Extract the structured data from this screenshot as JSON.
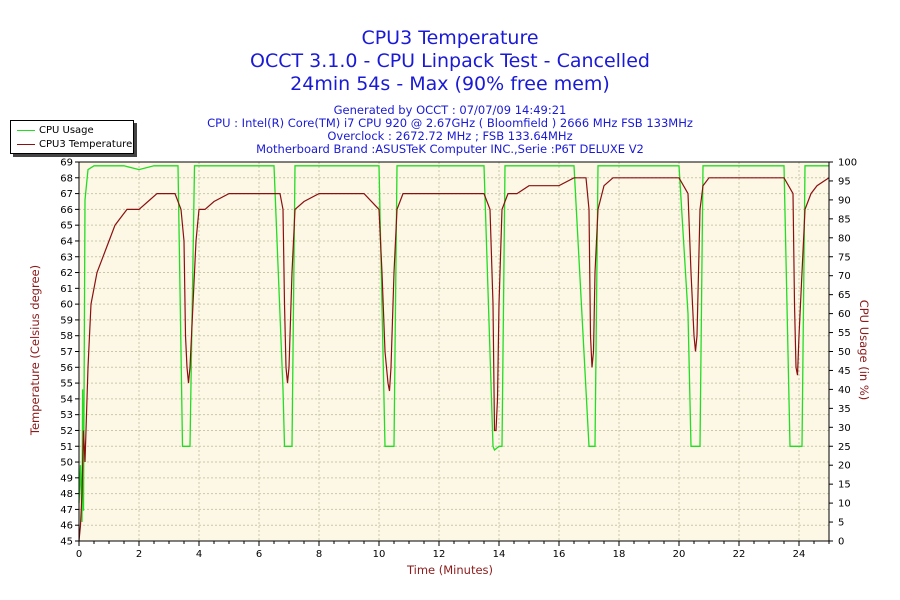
{
  "header": {
    "title1": "CPU3 Temperature",
    "title2": "OCCT 3.1.0 - CPU Linpack Test - Cancelled",
    "title3": "24min 54s - Max (90% free mem)",
    "info": [
      "Generated by OCCT : 07/07/09 14:49:21",
      "CPU : Intel(R) Core(TM) i7 CPU 920 @ 2.67GHz ( Bloomfield ) 2666 MHz FSB 133MHz",
      "Overclock : 2672.72 MHz ; FSB 133.64MHz",
      "Motherboard Brand :ASUSTeK Computer INC.,Serie :P6T DELUXE V2"
    ]
  },
  "legend": {
    "items": [
      {
        "label": "CPU Usage",
        "color": "#22dd22"
      },
      {
        "label": "CPU3 Temperature",
        "color": "#8b1010"
      }
    ]
  },
  "colors": {
    "plot_bg": "#fdf8e6",
    "grid": "#c8c8a8",
    "temp": "#8b1010",
    "usage": "#22dd22",
    "axis_label": "#8b1a1a"
  },
  "chart_data": {
    "type": "line",
    "xlabel": "Time (Minutes)",
    "ylabel": "Temperature (Celsius degree)",
    "y2label": "CPU Usage (in %)",
    "xlim": [
      0,
      25
    ],
    "ylim": [
      45,
      69
    ],
    "y2lim": [
      0,
      100
    ],
    "x_ticks": [
      0,
      2,
      4,
      6,
      8,
      10,
      12,
      14,
      16,
      18,
      20,
      22,
      24
    ],
    "y_ticks": [
      45,
      46,
      47,
      48,
      49,
      50,
      51,
      52,
      53,
      54,
      55,
      56,
      57,
      58,
      59,
      60,
      61,
      62,
      63,
      64,
      65,
      66,
      67,
      68,
      69
    ],
    "y2_ticks": [
      0,
      5,
      10,
      15,
      20,
      25,
      30,
      35,
      40,
      45,
      50,
      55,
      60,
      65,
      70,
      75,
      80,
      85,
      90,
      95,
      100
    ],
    "grid": true,
    "legend_position": "top-left",
    "series": [
      {
        "name": "CPU3 Temperature",
        "axis": "left",
        "x": [
          0.0,
          0.05,
          0.1,
          0.15,
          0.2,
          0.3,
          0.4,
          0.6,
          0.8,
          1.0,
          1.2,
          1.4,
          1.6,
          1.8,
          2.0,
          2.3,
          2.6,
          2.9,
          3.2,
          3.4,
          3.5,
          3.55,
          3.6,
          3.65,
          3.7,
          3.8,
          3.9,
          4.0,
          4.2,
          4.5,
          5.0,
          5.5,
          6.0,
          6.5,
          6.7,
          6.8,
          6.85,
          6.9,
          6.95,
          7.0,
          7.1,
          7.2,
          7.5,
          8.0,
          8.5,
          9.0,
          9.5,
          10.0,
          10.1,
          10.2,
          10.3,
          10.35,
          10.4,
          10.5,
          10.6,
          10.8,
          11.0,
          11.5,
          12.0,
          12.5,
          13.0,
          13.5,
          13.7,
          13.8,
          13.85,
          13.9,
          13.95,
          14.0,
          14.1,
          14.3,
          14.6,
          15.0,
          15.5,
          16.0,
          16.5,
          16.9,
          17.0,
          17.05,
          17.1,
          17.15,
          17.2,
          17.3,
          17.5,
          17.8,
          18.0,
          18.5,
          19.0,
          19.5,
          20.0,
          20.3,
          20.4,
          20.5,
          20.55,
          20.6,
          20.65,
          20.7,
          20.8,
          21.0,
          21.5,
          22.0,
          22.5,
          23.0,
          23.5,
          23.8,
          23.85,
          23.9,
          23.95,
          24.0,
          24.1,
          24.2,
          24.4,
          24.6,
          25.0
        ],
        "values": [
          45,
          46,
          48,
          52,
          50,
          56,
          60,
          62,
          63,
          64,
          65,
          65.5,
          66,
          66,
          66,
          66.5,
          67,
          67,
          67,
          66,
          64,
          58,
          56,
          55,
          56,
          60,
          64,
          66,
          66,
          66.5,
          67,
          67,
          67,
          67,
          67,
          66,
          60,
          56,
          55,
          56,
          62,
          66,
          66.5,
          67,
          67,
          67,
          67,
          66,
          62,
          57,
          55,
          54.5,
          56,
          62,
          66,
          67,
          67,
          67,
          67,
          67,
          67,
          67,
          66,
          60,
          52,
          52,
          54,
          60,
          66,
          67,
          67,
          67.5,
          67.5,
          67.5,
          68,
          68,
          66,
          58,
          56,
          57,
          62,
          66,
          67.5,
          68,
          68,
          68,
          68,
          68,
          68,
          67,
          62,
          58,
          57,
          58,
          62,
          66,
          67.5,
          68,
          68,
          68,
          68,
          68,
          68,
          67,
          60,
          56,
          55.5,
          58,
          62,
          66,
          67,
          67.5,
          68
        ]
      },
      {
        "name": "CPU Usage",
        "axis": "right",
        "x": [
          0.0,
          0.05,
          0.1,
          0.12,
          0.15,
          0.2,
          0.3,
          0.5,
          1.0,
          1.5,
          2.0,
          2.5,
          3.0,
          3.3,
          3.4,
          3.45,
          3.6,
          3.7,
          3.75,
          3.85,
          4.0,
          4.5,
          5.0,
          5.5,
          6.0,
          6.5,
          6.8,
          6.85,
          7.0,
          7.1,
          7.2,
          7.5,
          8.0,
          8.5,
          9.0,
          9.5,
          10.0,
          10.2,
          10.25,
          10.4,
          10.5,
          10.6,
          11.0,
          11.5,
          12.0,
          12.5,
          13.0,
          13.5,
          13.8,
          13.85,
          14.0,
          14.1,
          14.2,
          14.5,
          15.0,
          15.5,
          16.0,
          16.5,
          17.0,
          17.05,
          17.2,
          17.3,
          17.5,
          18.0,
          18.5,
          19.0,
          19.5,
          20.0,
          20.3,
          20.4,
          20.55,
          20.7,
          20.8,
          21.0,
          21.5,
          22.0,
          22.5,
          23.0,
          23.5,
          23.7,
          23.75,
          24.0,
          24.1,
          24.2,
          24.5,
          25.0
        ],
        "values": [
          10,
          20,
          5,
          40,
          8,
          90,
          98,
          99,
          99,
          99,
          98,
          99,
          99,
          99,
          50,
          25,
          25,
          25,
          50,
          99,
          99,
          99,
          99,
          99,
          99,
          99,
          40,
          25,
          25,
          25,
          99,
          99,
          99,
          99,
          99,
          99,
          99,
          25,
          25,
          25,
          25,
          99,
          99,
          99,
          99,
          99,
          99,
          99,
          25,
          24,
          25,
          25,
          99,
          99,
          99,
          99,
          99,
          99,
          25,
          25,
          25,
          99,
          99,
          99,
          99,
          99,
          99,
          99,
          60,
          25,
          25,
          25,
          99,
          99,
          99,
          99,
          99,
          99,
          99,
          25,
          25,
          25,
          25,
          99,
          99,
          99
        ]
      }
    ]
  }
}
